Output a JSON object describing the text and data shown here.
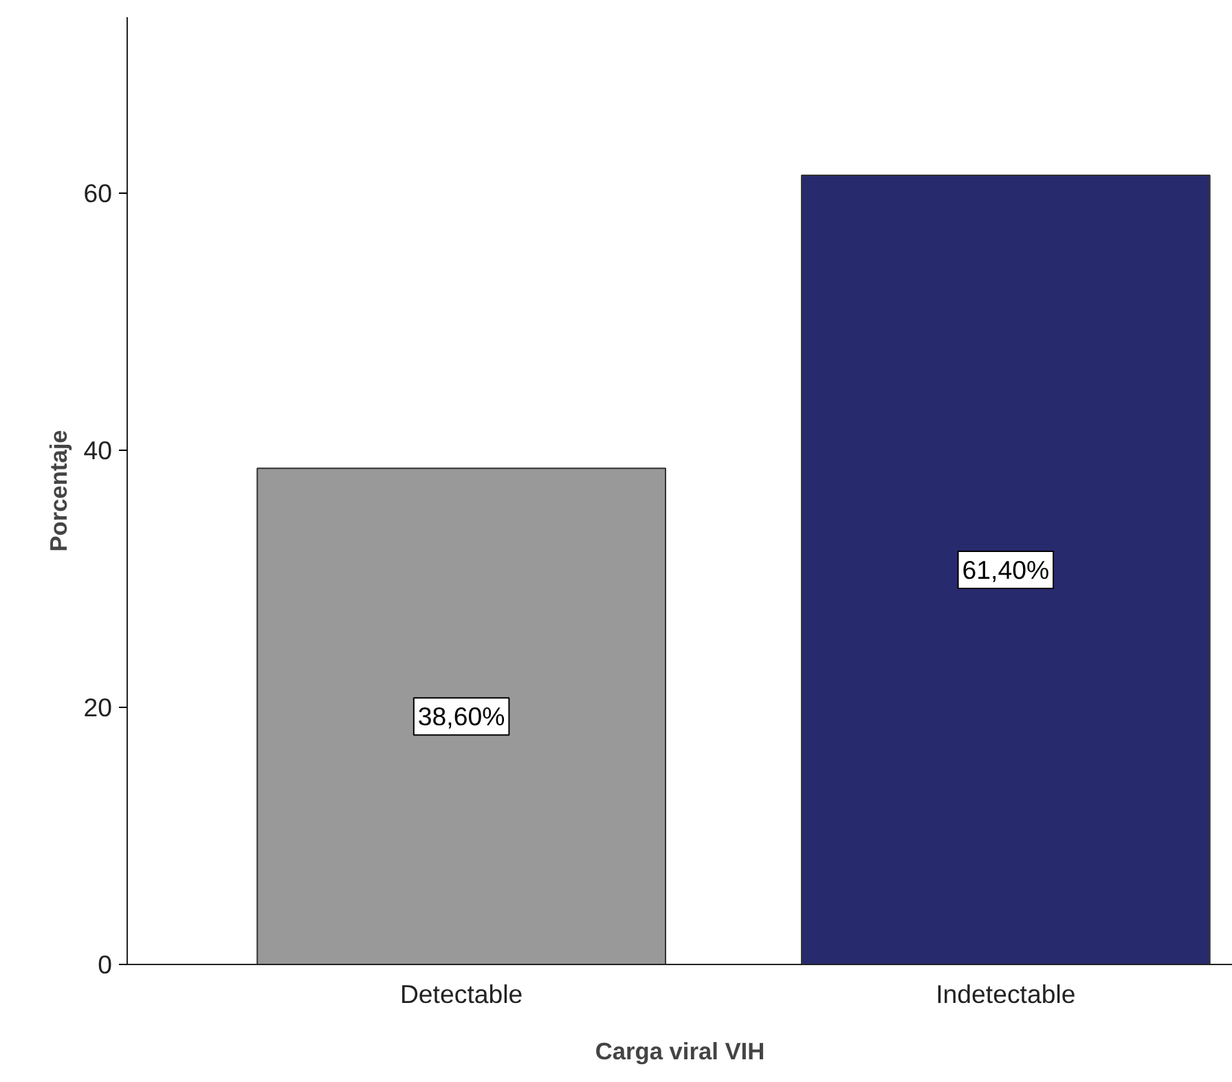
{
  "chart_data": {
    "type": "bar",
    "xlabel": "Carga viral VIH",
    "ylabel": "Porcentaje",
    "categories": [
      "Detectable",
      "Indetectable"
    ],
    "values": [
      38.6,
      61.4
    ],
    "colors": [
      "#999999",
      "#282a6e"
    ],
    "value_labels": [
      "38,60%",
      "61,40%"
    ],
    "ylim": [
      0,
      73.7
    ],
    "yticks": [
      0,
      20,
      40,
      60
    ],
    "grid": false
  }
}
